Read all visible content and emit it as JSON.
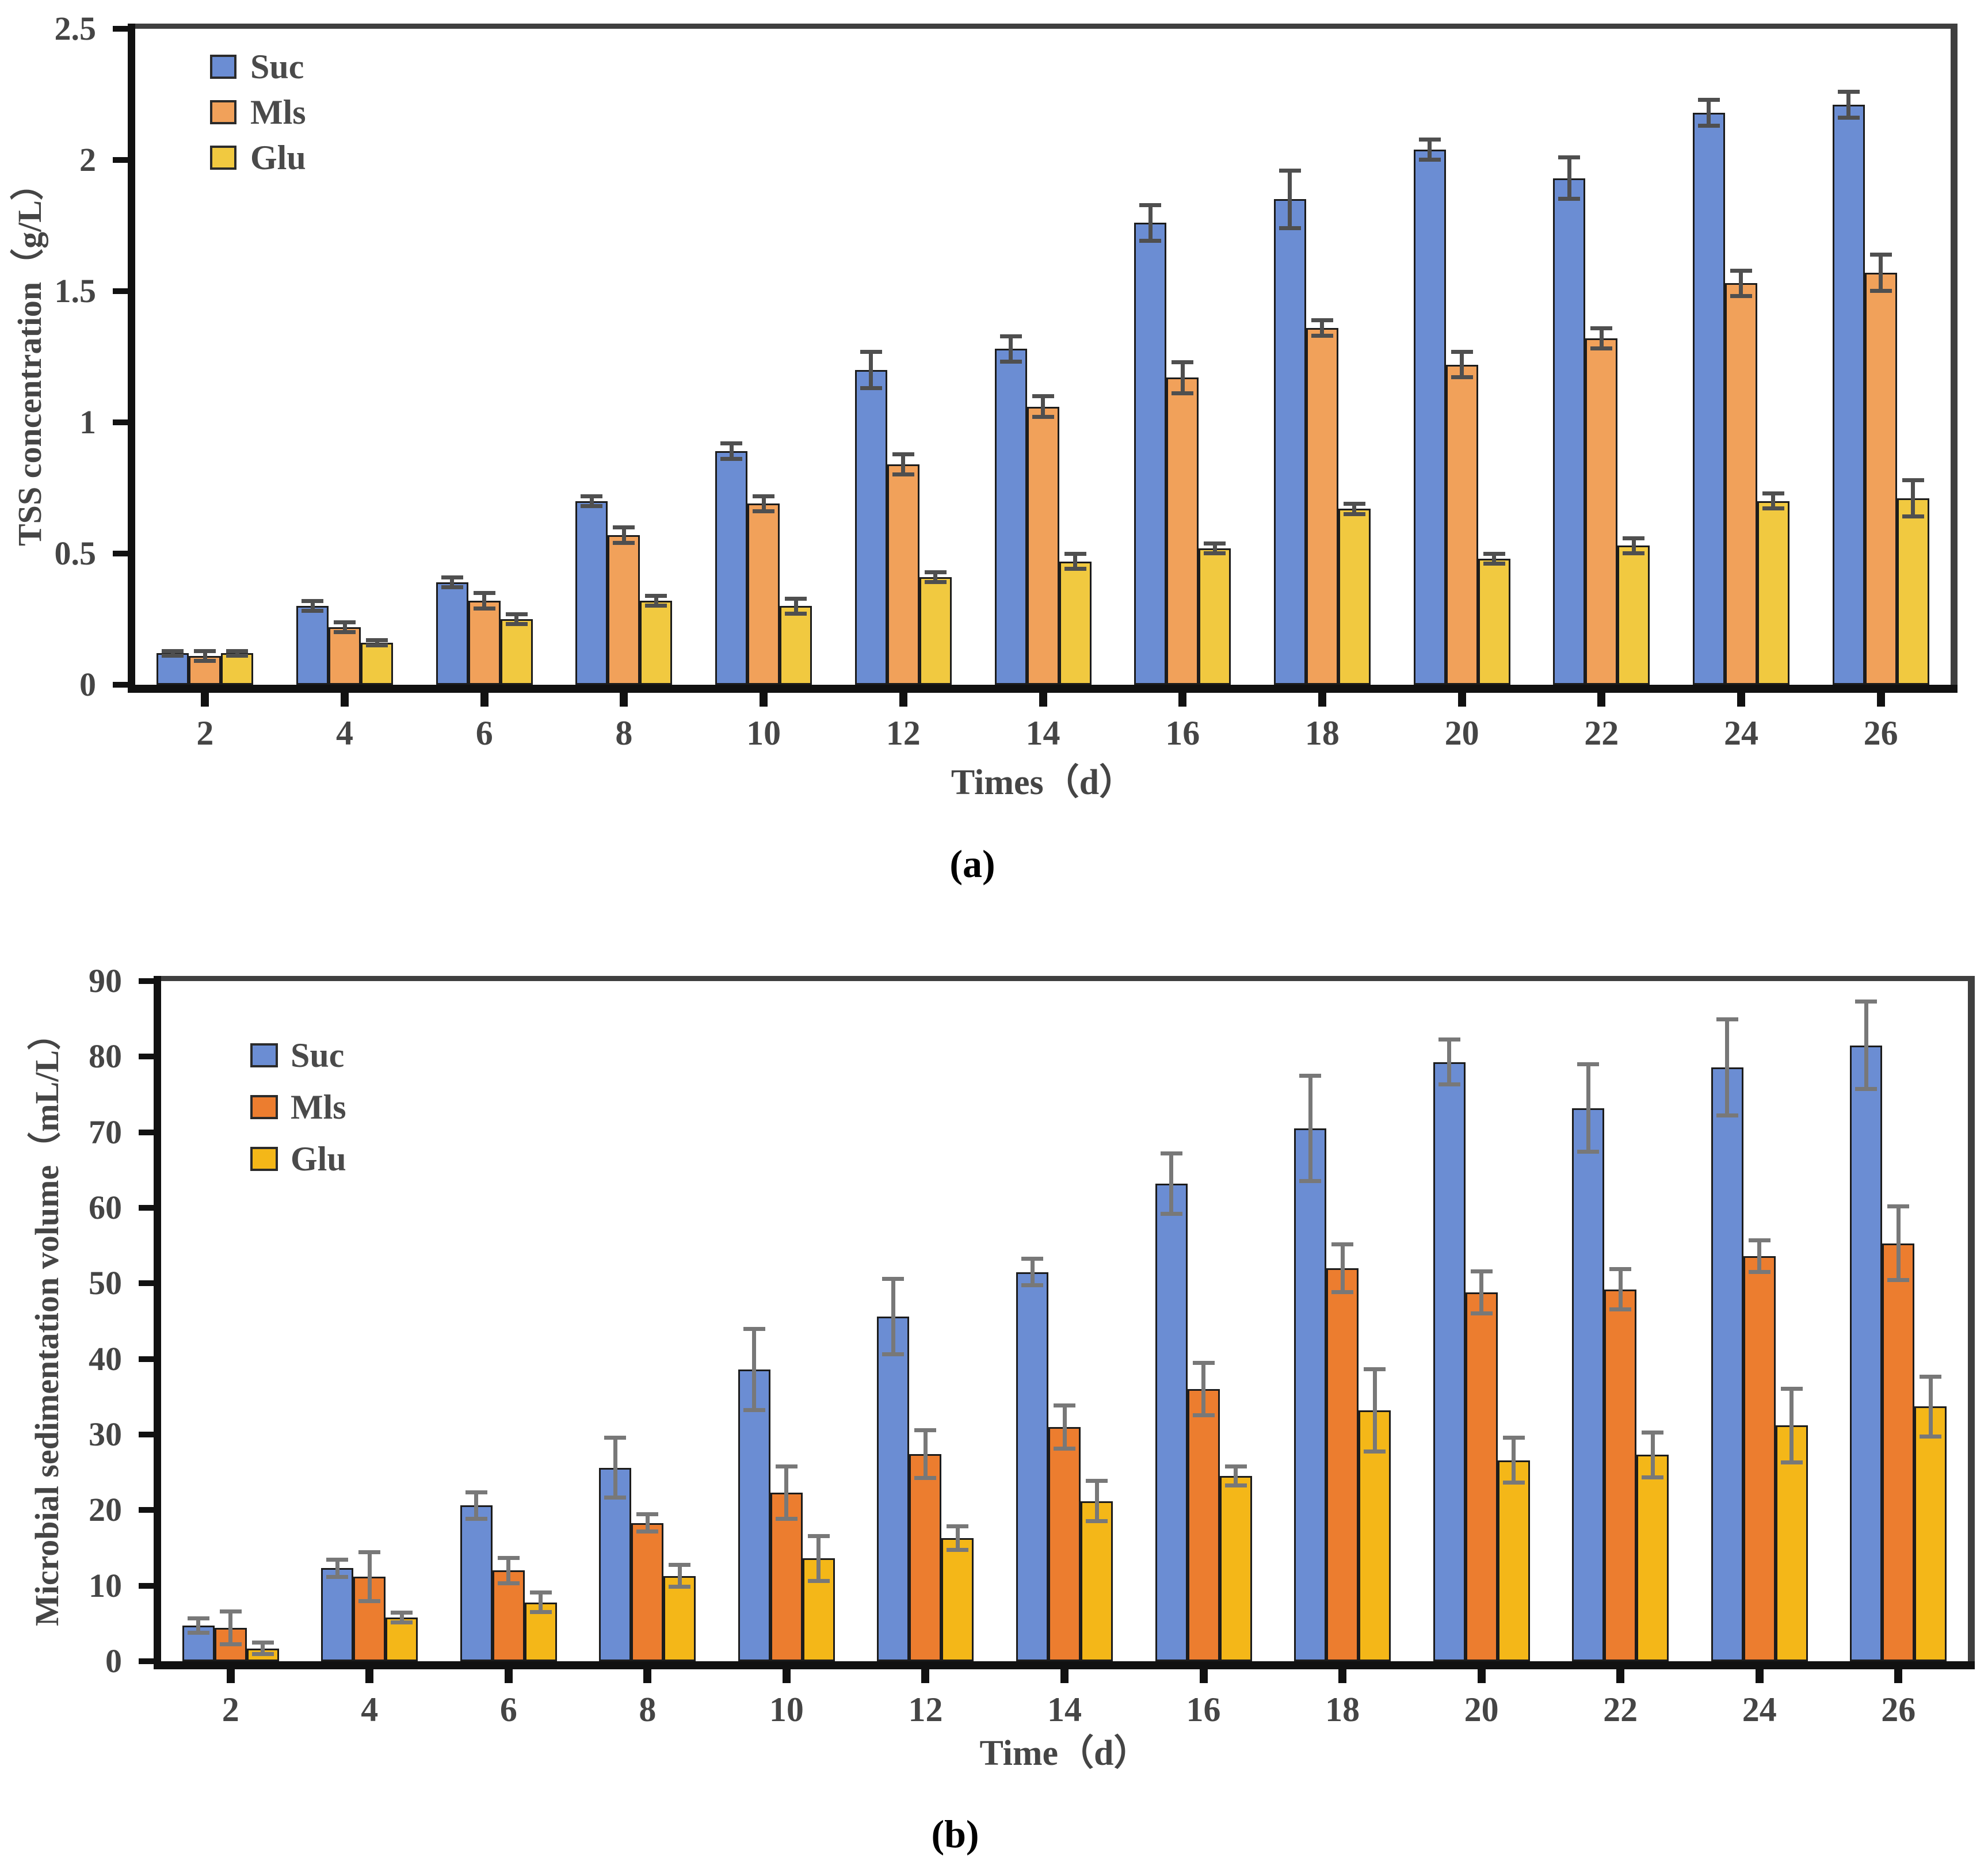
{
  "figure": {
    "captions": [
      "(a)",
      "(b)"
    ]
  },
  "colors": {
    "suc": "#6B8DD3",
    "mls_panel_a": "#F1A15A",
    "mls_panel_b": "#EC7D2F",
    "glu_panel_a": "#F1C940",
    "glu_panel_b": "#F4B718",
    "axis": "#111111",
    "frame": "#3f3f3f",
    "error_bar_a": "#4f4f4f",
    "error_bar_b": "#787878",
    "label_text": "#454545"
  },
  "chart_data": [
    {
      "panel": "a",
      "type": "bar",
      "title": "",
      "xlabel": "Times（d）",
      "ylabel": "TSS concentration（g/L）",
      "categories": [
        "2",
        "4",
        "6",
        "8",
        "10",
        "12",
        "14",
        "16",
        "18",
        "20",
        "22",
        "24",
        "26"
      ],
      "ylim": [
        0,
        2.5
      ],
      "yticks": [
        0,
        0.5,
        1,
        1.5,
        2,
        2.5
      ],
      "ytick_labels": [
        "0",
        "0.5",
        "1",
        "1.5",
        "2",
        "2.5"
      ],
      "grid": false,
      "legend": [
        "Suc",
        "Mls",
        "Glu"
      ],
      "legend_position": "top-left-inside",
      "series": [
        {
          "name": "Suc",
          "values": [
            0.12,
            0.3,
            0.39,
            0.7,
            0.89,
            1.2,
            1.28,
            1.76,
            1.85,
            2.04,
            1.93,
            2.18,
            2.21
          ],
          "errors": [
            0.01,
            0.02,
            0.02,
            0.02,
            0.03,
            0.07,
            0.05,
            0.07,
            0.11,
            0.04,
            0.08,
            0.05,
            0.05
          ]
        },
        {
          "name": "Mls",
          "values": [
            0.11,
            0.22,
            0.32,
            0.57,
            0.69,
            0.84,
            1.06,
            1.17,
            1.36,
            1.22,
            1.32,
            1.53,
            1.57
          ],
          "errors": [
            0.02,
            0.02,
            0.03,
            0.03,
            0.03,
            0.04,
            0.04,
            0.06,
            0.03,
            0.05,
            0.04,
            0.05,
            0.07
          ]
        },
        {
          "name": "Glu",
          "values": [
            0.12,
            0.16,
            0.25,
            0.32,
            0.3,
            0.41,
            0.47,
            0.52,
            0.67,
            0.48,
            0.53,
            0.7,
            0.71
          ],
          "errors": [
            0.01,
            0.01,
            0.02,
            0.02,
            0.03,
            0.02,
            0.03,
            0.02,
            0.02,
            0.02,
            0.03,
            0.03,
            0.07
          ]
        }
      ]
    },
    {
      "panel": "b",
      "type": "bar",
      "title": "",
      "xlabel": "Time（d）",
      "ylabel": "Microbial sedimentation volume（mL/L）",
      "categories": [
        "2",
        "4",
        "6",
        "8",
        "10",
        "12",
        "14",
        "16",
        "18",
        "20",
        "22",
        "24",
        "26"
      ],
      "ylim": [
        0,
        90
      ],
      "yticks": [
        0,
        10,
        20,
        30,
        40,
        50,
        60,
        70,
        80,
        90
      ],
      "ytick_labels": [
        "0",
        "10",
        "20",
        "30",
        "40",
        "50",
        "60",
        "70",
        "80",
        "90"
      ],
      "grid": false,
      "legend": [
        "Suc",
        "Mls",
        "Glu"
      ],
      "legend_position": "top-left-inside",
      "series": [
        {
          "name": "Suc",
          "values": [
            4.7,
            12.3,
            20.6,
            25.6,
            38.6,
            45.6,
            51.5,
            63.2,
            70.5,
            79.3,
            73.2,
            78.6,
            81.5
          ],
          "errors": [
            1.0,
            1.2,
            1.8,
            4.0,
            5.4,
            5.0,
            1.8,
            4.0,
            7.0,
            3.0,
            5.8,
            6.4,
            5.8
          ]
        },
        {
          "name": "Mls",
          "values": [
            4.4,
            11.2,
            12.0,
            18.3,
            22.3,
            27.4,
            31.0,
            36.0,
            52.0,
            48.8,
            49.2,
            53.6,
            55.3
          ],
          "errors": [
            2.2,
            3.3,
            1.7,
            1.2,
            3.5,
            3.2,
            2.9,
            3.5,
            3.2,
            2.8,
            2.7,
            2.1,
            4.9
          ]
        },
        {
          "name": "Glu",
          "values": [
            1.7,
            5.8,
            7.8,
            11.3,
            13.6,
            16.3,
            21.2,
            24.5,
            33.2,
            26.6,
            27.3,
            31.2,
            33.7
          ],
          "errors": [
            0.8,
            0.7,
            1.3,
            1.5,
            3.0,
            1.6,
            2.7,
            1.3,
            5.5,
            3.0,
            3.0,
            4.9,
            4.0
          ]
        }
      ]
    }
  ]
}
